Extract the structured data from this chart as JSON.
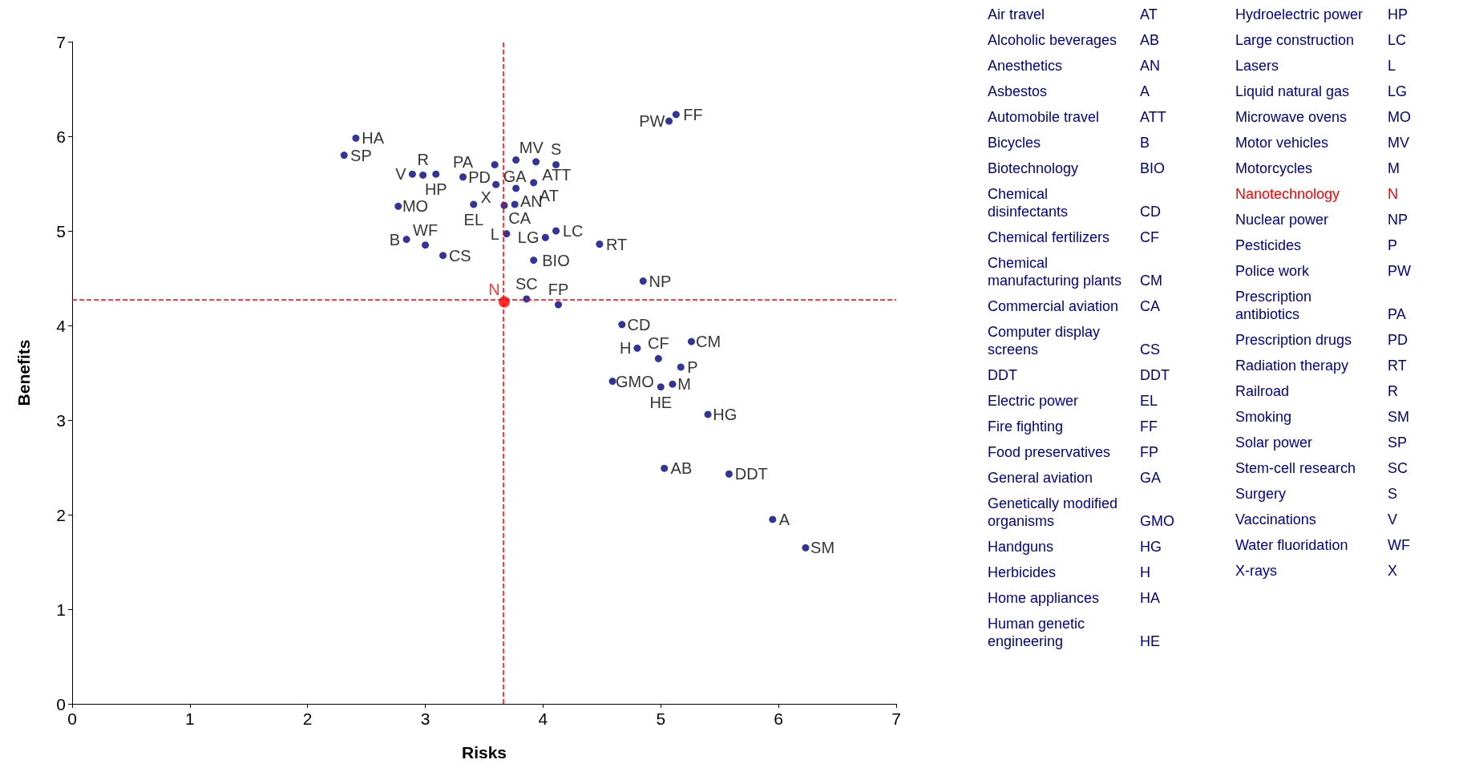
{
  "chart_data": {
    "type": "scatter",
    "xlabel": "Risks",
    "ylabel": "Benefits",
    "xlim": [
      0,
      7
    ],
    "xticks": [
      0,
      1,
      2,
      3,
      4,
      5,
      6,
      7
    ],
    "ylim": [
      0,
      7
    ],
    "yticks": [
      0,
      1,
      2,
      3,
      4,
      5,
      6,
      7
    ],
    "grid": false,
    "marker": "circle",
    "series": [
      {
        "color": "#000080",
        "x": [
          2.41,
          2.31,
          2.89,
          2.98,
          3.09,
          3.32,
          2.77,
          3.41,
          2.84,
          3.0,
          3.15,
          3.59,
          3.6,
          3.67,
          3.69,
          3.77,
          3.77,
          3.76,
          3.94,
          3.92,
          4.11,
          4.11,
          4.02,
          3.92,
          4.48,
          4.85,
          3.86,
          4.13,
          4.67,
          4.8,
          4.98,
          5.26,
          5.17,
          4.59,
          5.0,
          5.1,
          5.4,
          5.03,
          5.58,
          5.95,
          6.23,
          5.13,
          5.07
        ],
        "values": [
          5.98,
          5.8,
          5.6,
          5.59,
          5.6,
          5.57,
          5.26,
          5.28,
          4.91,
          4.85,
          4.74,
          5.7,
          5.49,
          5.27,
          4.97,
          5.75,
          5.45,
          5.28,
          5.73,
          5.51,
          5.7,
          5.0,
          4.93,
          4.69,
          4.86,
          4.47,
          4.28,
          4.22,
          4.01,
          3.76,
          3.65,
          3.83,
          3.56,
          3.41,
          3.35,
          3.38,
          3.06,
          2.49,
          2.43,
          1.95,
          1.65,
          6.23,
          6.16
        ],
        "value_labels": [
          "HA",
          "SP",
          "V",
          "R",
          "HP",
          "PA",
          "MO",
          "EL",
          "B",
          "WF",
          "CS",
          "PD",
          "X",
          "CA",
          "L",
          "MV",
          "AN",
          "GA",
          "ATT",
          "AT",
          "S",
          "LC",
          "LG",
          "BIO",
          "RT",
          "NP",
          "SC",
          "FP",
          "CD",
          "H",
          "CF",
          "CM",
          "P",
          "GMO",
          "HE",
          "M",
          "HG",
          "AB",
          "DDT",
          "A",
          "SM",
          "FF",
          "PW"
        ]
      },
      {
        "color": "#ff0000",
        "x": [
          3.67
        ],
        "values": [
          4.25
        ],
        "value_labels": [
          "N"
        ]
      }
    ],
    "ref_lines": [
      {
        "axis": "x",
        "value": 3.66,
        "color": "#ff0000",
        "line_style": "dashed"
      },
      {
        "axis": "y",
        "value": 4.27,
        "color": "#ff0000",
        "line_style": "dashed"
      }
    ],
    "annotations": [
      "Air travel AT",
      "Alcoholic beverages AB",
      "Anesthetics AN",
      "Asbestos A",
      "Automobile travel ATT",
      "Bicycles B",
      "Biotechnology BIO",
      "Chemical disinfectants CD",
      "Chemical fertilizers CF",
      "Chemical manufacturing plants CM",
      "Commercial aviation CA",
      "Computer display screens CS",
      "DDT DDT",
      "Electric power EL",
      "Fire fighting FF",
      "Food preservatives FP",
      "General aviation GA",
      "Genetically modified organisms GMO",
      "Handguns HG",
      "Herbicides H",
      "Home appliances HA",
      "Human genetic engineering HE",
      "Hydroelectric power HP",
      "Large construction LC",
      "Lasers L",
      "Liquid natural gas LG",
      "Microwave ovens MO",
      "Motor vehicles MV",
      "Motorcycles M",
      "Nanotechnology N",
      "Nuclear power NP",
      "Pesticides P",
      "Police work PW",
      "Prescription antibiotics PA",
      "Prescription drugs PD",
      "Radiation therapy RT",
      "Railroad R",
      "Smoking SM",
      "Solar power SP",
      "Stem-cell research SC",
      "Surgery S",
      "Vaccinations V",
      "Water fluoridation WF",
      "X-rays X"
    ]
  }
}
